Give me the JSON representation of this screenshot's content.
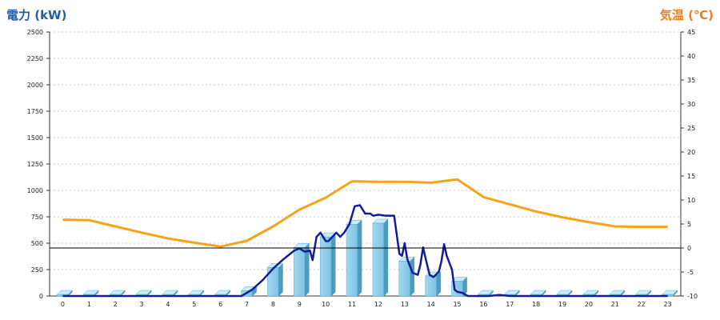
{
  "chart_data": {
    "type": "bar",
    "left_axis_title": "電力 (kW)",
    "right_axis_title": "気温 (℃)",
    "categories": [
      "0",
      "1",
      "2",
      "3",
      "4",
      "5",
      "6",
      "7",
      "8",
      "9",
      "10",
      "11",
      "12",
      "13",
      "14",
      "15",
      "16",
      "17",
      "18",
      "19",
      "20",
      "21",
      "22",
      "23"
    ],
    "left_ticks": [
      "0",
      "250",
      "500",
      "750",
      "1000",
      "1250",
      "1500",
      "1750",
      "2000",
      "2250",
      "2500"
    ],
    "right_ticks": [
      "-10",
      "-5",
      "0",
      "5",
      "10",
      "15",
      "20",
      "25",
      "30",
      "35",
      "40",
      "45"
    ],
    "y_left_lim": [
      0,
      2500
    ],
    "y_right_lim": [
      -10,
      45
    ],
    "grid": true,
    "bars": {
      "name": "",
      "color": "#87ceeb",
      "values": [
        0,
        0,
        0,
        0,
        0,
        0,
        0,
        50,
        270,
        460,
        560,
        680,
        690,
        330,
        190,
        140,
        0,
        0,
        0,
        0,
        0,
        0,
        0,
        0
      ]
    },
    "temperature": {
      "name": "",
      "color": "#f5a31a",
      "points": [
        [
          0,
          5.9
        ],
        [
          1,
          5.8
        ],
        [
          2,
          4.5
        ],
        [
          3,
          3.2
        ],
        [
          4,
          2.0
        ],
        [
          5,
          1.1
        ],
        [
          6,
          0.3
        ],
        [
          7,
          1.5
        ],
        [
          8,
          4.5
        ],
        [
          9,
          8.0
        ],
        [
          10,
          10.5
        ],
        [
          11,
          13.9
        ],
        [
          12,
          13.8
        ],
        [
          13,
          13.8
        ],
        [
          14,
          13.6
        ],
        [
          15,
          14.3
        ],
        [
          16,
          10.6
        ],
        [
          17,
          9.1
        ],
        [
          18,
          7.6
        ],
        [
          19,
          6.4
        ],
        [
          20,
          5.4
        ],
        [
          21,
          4.5
        ],
        [
          22,
          4.4
        ],
        [
          23,
          4.4
        ]
      ]
    },
    "power_line": {
      "name": "",
      "color": "#141c96",
      "points": [
        [
          0,
          0
        ],
        [
          6.8,
          0
        ],
        [
          7.2,
          60
        ],
        [
          7.6,
          150
        ],
        [
          8.0,
          260
        ],
        [
          8.4,
          350
        ],
        [
          8.8,
          430
        ],
        [
          9.0,
          450
        ],
        [
          9.2,
          420
        ],
        [
          9.4,
          430
        ],
        [
          9.5,
          340
        ],
        [
          9.65,
          560
        ],
        [
          9.8,
          600
        ],
        [
          10.0,
          520
        ],
        [
          10.1,
          520
        ],
        [
          10.4,
          600
        ],
        [
          10.55,
          560
        ],
        [
          10.7,
          600
        ],
        [
          10.9,
          680
        ],
        [
          11.1,
          850
        ],
        [
          11.3,
          860
        ],
        [
          11.5,
          780
        ],
        [
          11.7,
          780
        ],
        [
          11.8,
          760
        ],
        [
          12.0,
          770
        ],
        [
          12.3,
          760
        ],
        [
          12.6,
          760
        ],
        [
          12.8,
          400
        ],
        [
          12.9,
          380
        ],
        [
          13.0,
          500
        ],
        [
          13.1,
          350
        ],
        [
          13.3,
          220
        ],
        [
          13.5,
          200
        ],
        [
          13.6,
          300
        ],
        [
          13.7,
          460
        ],
        [
          13.85,
          300
        ],
        [
          13.95,
          200
        ],
        [
          14.1,
          180
        ],
        [
          14.3,
          230
        ],
        [
          14.4,
          330
        ],
        [
          14.5,
          490
        ],
        [
          14.6,
          380
        ],
        [
          14.8,
          250
        ],
        [
          14.9,
          60
        ],
        [
          15.0,
          40
        ],
        [
          15.2,
          30
        ],
        [
          15.4,
          0
        ],
        [
          16.2,
          0
        ],
        [
          16.6,
          10
        ],
        [
          17,
          0
        ],
        [
          23,
          0
        ]
      ]
    },
    "reference_line": {
      "right_value": 0,
      "color": "#000000"
    }
  }
}
